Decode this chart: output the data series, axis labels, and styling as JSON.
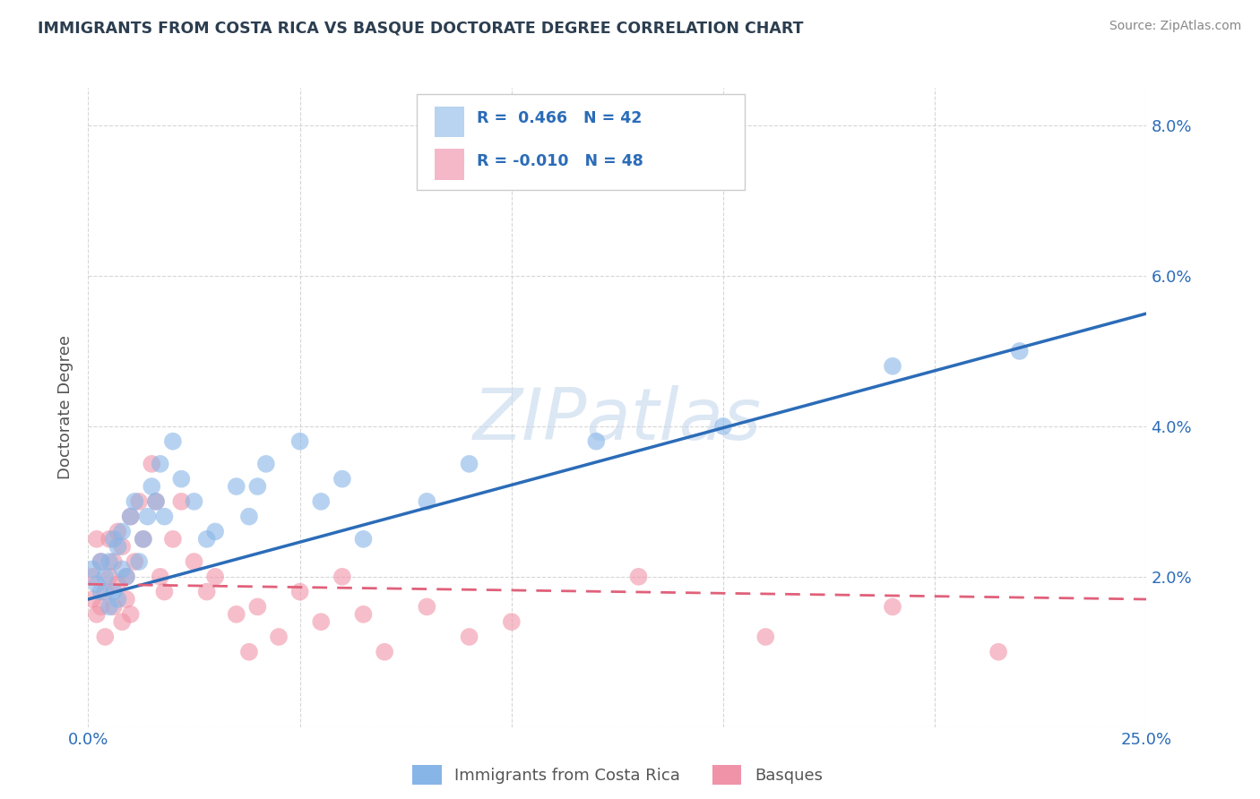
{
  "title": "IMMIGRANTS FROM COSTA RICA VS BASQUE DOCTORATE DEGREE CORRELATION CHART",
  "source": "Source: ZipAtlas.com",
  "ylabel": "Doctorate Degree",
  "xlim": [
    0.0,
    0.25
  ],
  "ylim": [
    0.0,
    0.085
  ],
  "xtick_positions": [
    0.0,
    0.05,
    0.1,
    0.15,
    0.2,
    0.25
  ],
  "xticklabels": [
    "0.0%",
    "",
    "",
    "",
    "",
    "25.0%"
  ],
  "ytick_positions": [
    0.0,
    0.02,
    0.04,
    0.06,
    0.08
  ],
  "yticklabels_left": [
    "",
    "",
    "",
    "",
    ""
  ],
  "yticklabels_right": [
    "",
    "2.0%",
    "4.0%",
    "6.0%",
    "8.0%"
  ],
  "series1_color": "#87b5e8",
  "series2_color": "#f093a8",
  "trend1_color": "#2b6cb8",
  "trend2_color": "#e0607a",
  "legend_box1_color": "#b8d4f0",
  "legend_box2_color": "#f5b8c8",
  "legend_text_color": "#2b6cb8",
  "legend_label1": "R =  0.466   N = 42",
  "legend_label2": "R = -0.010   N = 48",
  "watermark_text": "ZIPatlas",
  "watermark_color": "#c5d8ee",
  "background_color": "#ffffff",
  "grid_color": "#cccccc",
  "title_color": "#2c3e50",
  "tick_label_color": "#2b6cb8",
  "ylabel_color": "#555555",
  "source_color": "#888888",
  "bottom_legend_color": "#555555",
  "trend1_start_x": 0.0,
  "trend1_start_y": 0.017,
  "trend1_end_x": 0.25,
  "trend1_end_y": 0.055,
  "trend2_start_x": 0.0,
  "trend2_start_y": 0.019,
  "trend2_end_x": 0.25,
  "trend2_end_y": 0.017,
  "scatter1_x": [
    0.001,
    0.002,
    0.003,
    0.003,
    0.004,
    0.005,
    0.005,
    0.006,
    0.006,
    0.007,
    0.007,
    0.008,
    0.008,
    0.009,
    0.01,
    0.011,
    0.012,
    0.013,
    0.014,
    0.015,
    0.016,
    0.017,
    0.018,
    0.02,
    0.022,
    0.025,
    0.028,
    0.03,
    0.035,
    0.038,
    0.04,
    0.042,
    0.05,
    0.055,
    0.06,
    0.065,
    0.08,
    0.09,
    0.12,
    0.15,
    0.19,
    0.22
  ],
  "scatter1_y": [
    0.021,
    0.019,
    0.022,
    0.018,
    0.02,
    0.022,
    0.016,
    0.018,
    0.025,
    0.017,
    0.024,
    0.021,
    0.026,
    0.02,
    0.028,
    0.03,
    0.022,
    0.025,
    0.028,
    0.032,
    0.03,
    0.035,
    0.028,
    0.038,
    0.033,
    0.03,
    0.025,
    0.026,
    0.032,
    0.028,
    0.032,
    0.035,
    0.038,
    0.03,
    0.033,
    0.025,
    0.03,
    0.035,
    0.038,
    0.04,
    0.048,
    0.05
  ],
  "scatter2_x": [
    0.001,
    0.001,
    0.002,
    0.002,
    0.003,
    0.003,
    0.004,
    0.004,
    0.005,
    0.005,
    0.006,
    0.006,
    0.007,
    0.007,
    0.008,
    0.008,
    0.009,
    0.009,
    0.01,
    0.01,
    0.011,
    0.012,
    0.013,
    0.015,
    0.016,
    0.017,
    0.018,
    0.02,
    0.022,
    0.025,
    0.028,
    0.03,
    0.035,
    0.038,
    0.04,
    0.045,
    0.05,
    0.055,
    0.06,
    0.065,
    0.07,
    0.08,
    0.09,
    0.1,
    0.13,
    0.16,
    0.19,
    0.215
  ],
  "scatter2_y": [
    0.02,
    0.017,
    0.025,
    0.015,
    0.022,
    0.016,
    0.018,
    0.012,
    0.02,
    0.025,
    0.016,
    0.022,
    0.019,
    0.026,
    0.014,
    0.024,
    0.02,
    0.017,
    0.028,
    0.015,
    0.022,
    0.03,
    0.025,
    0.035,
    0.03,
    0.02,
    0.018,
    0.025,
    0.03,
    0.022,
    0.018,
    0.02,
    0.015,
    0.01,
    0.016,
    0.012,
    0.018,
    0.014,
    0.02,
    0.015,
    0.01,
    0.016,
    0.012,
    0.014,
    0.02,
    0.012,
    0.016,
    0.01
  ]
}
